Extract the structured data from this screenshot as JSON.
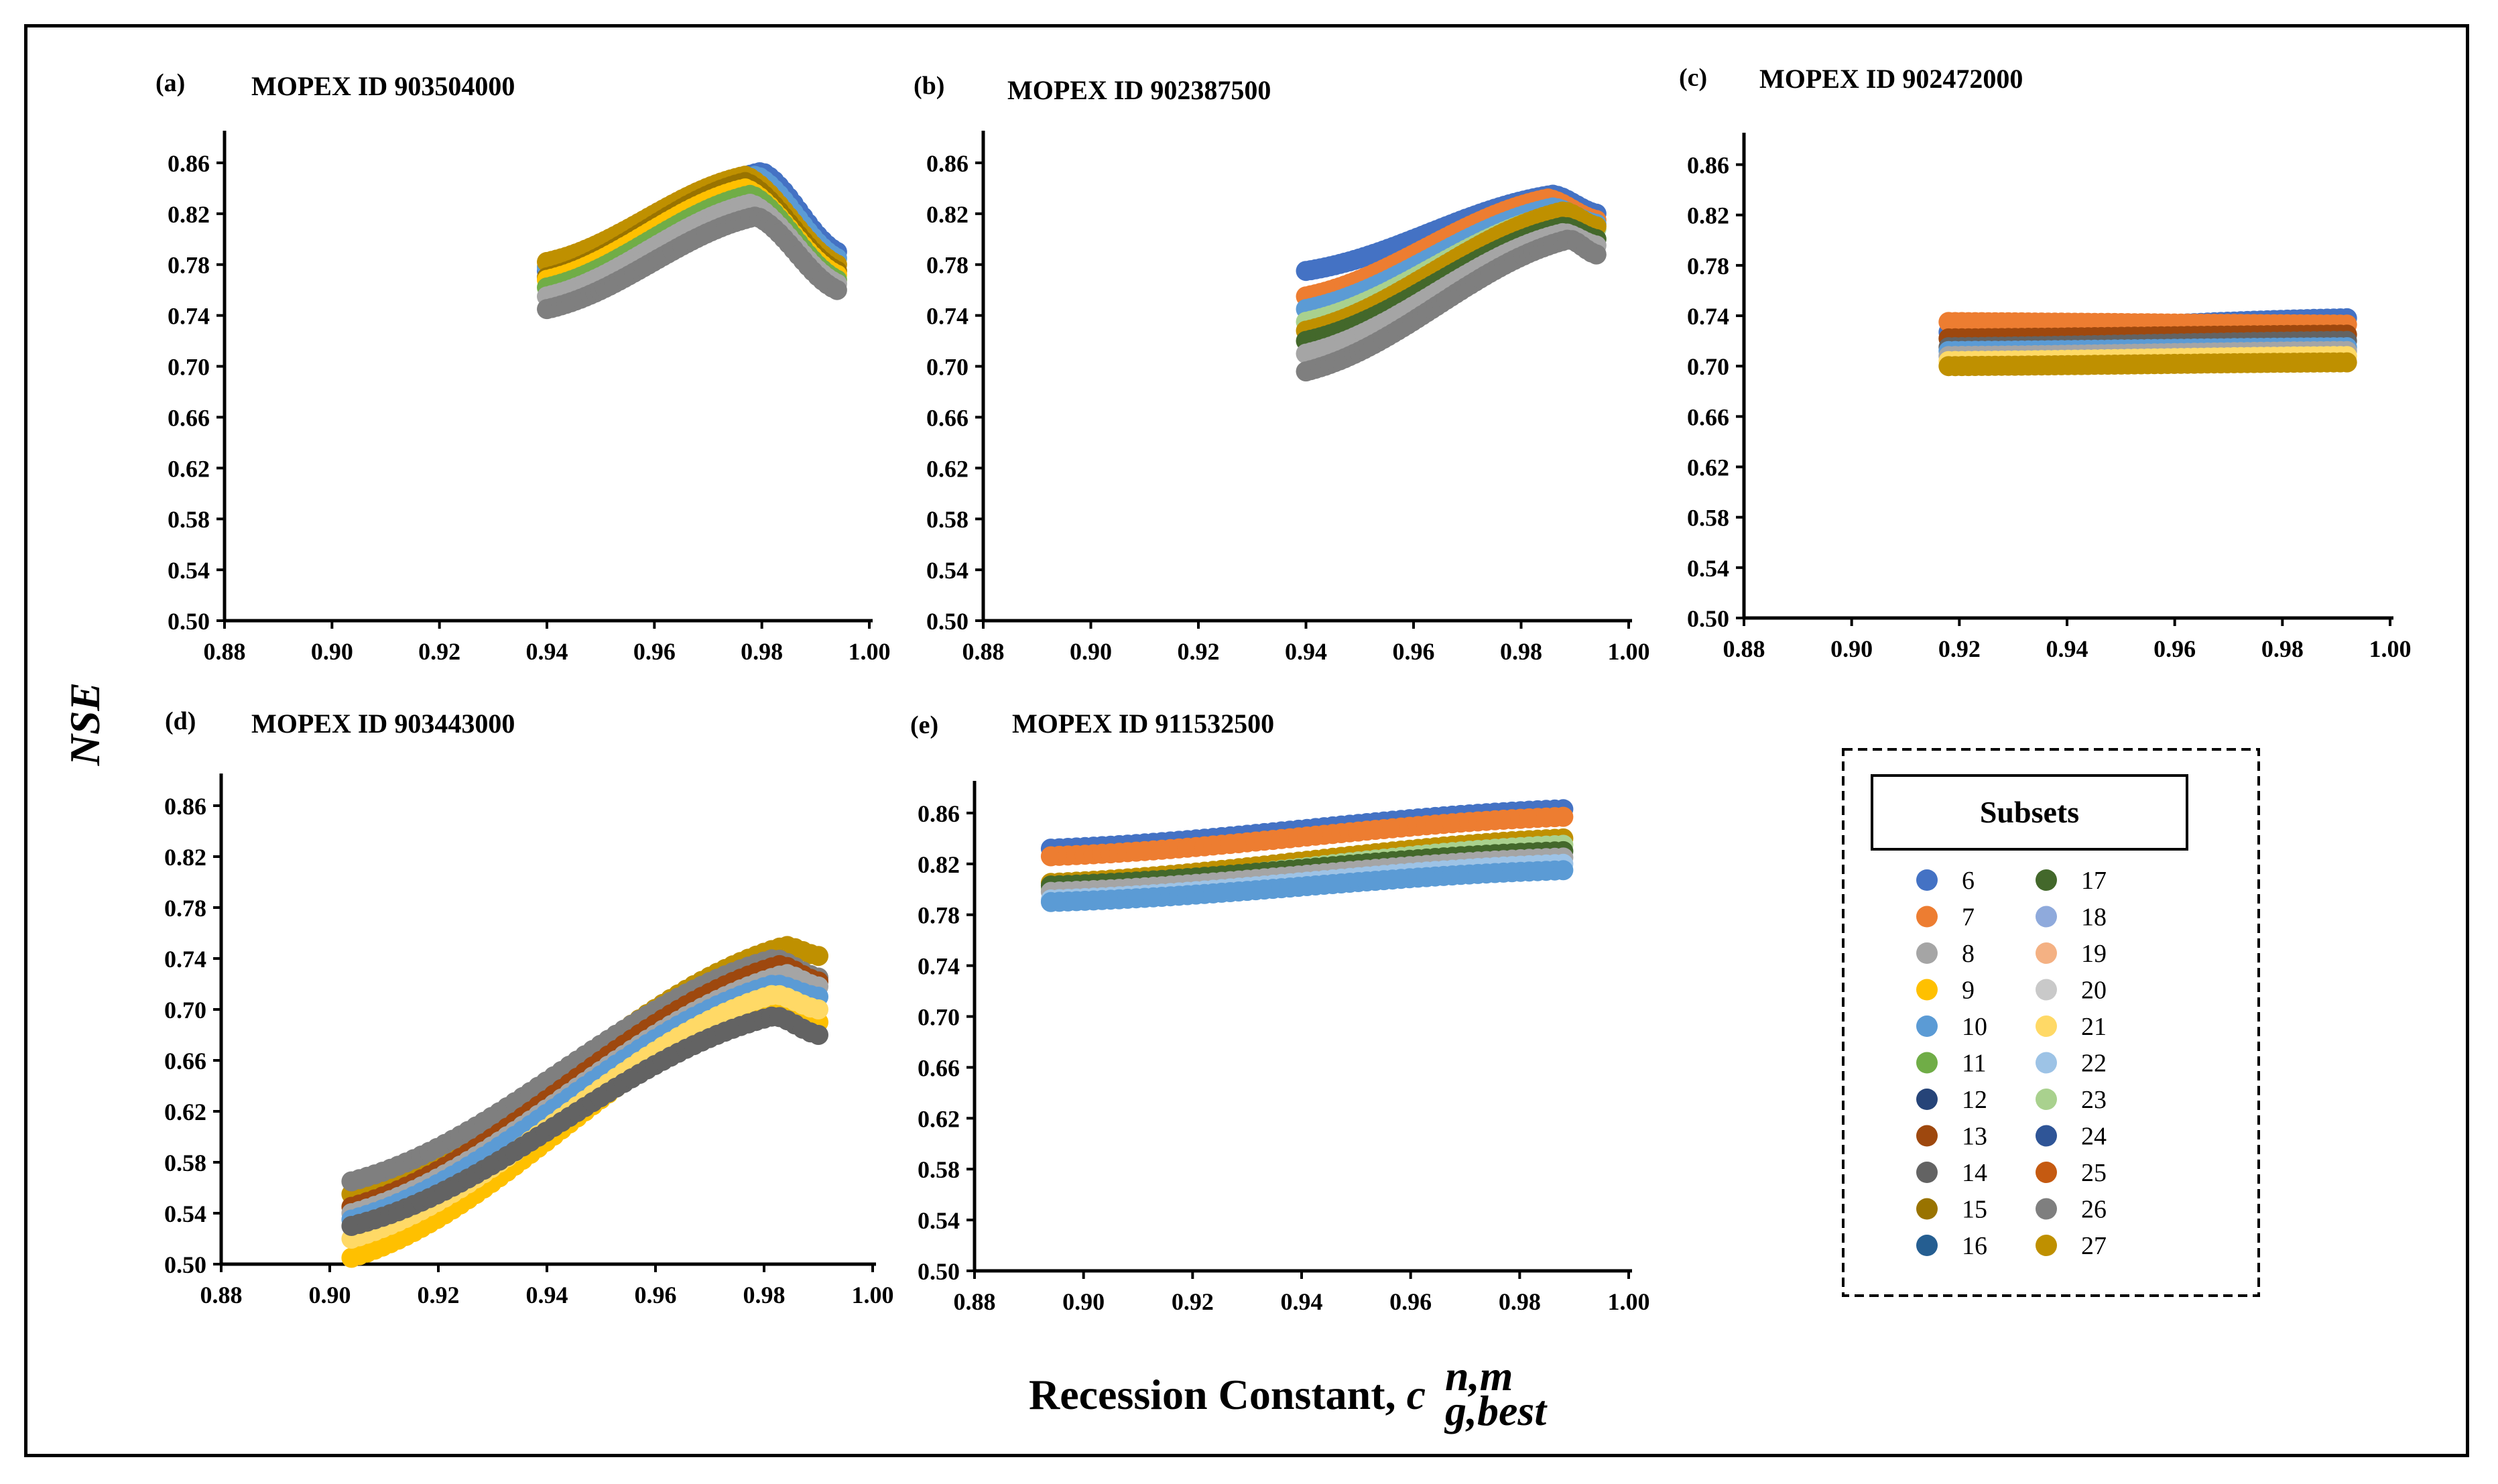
{
  "figure": {
    "y_label": "NSE",
    "x_label": "Recession Constant, ",
    "x_label_symbol": "c",
    "x_label_sup": "n,m",
    "x_label_sub": "g,best"
  },
  "legend": {
    "title": "Subsets",
    "items": [
      {
        "label": "6",
        "color": "#4472C4"
      },
      {
        "label": "7",
        "color": "#ED7D31"
      },
      {
        "label": "8",
        "color": "#A5A5A5"
      },
      {
        "label": "9",
        "color": "#FFC000"
      },
      {
        "label": "10",
        "color": "#5B9BD5"
      },
      {
        "label": "11",
        "color": "#70AD47"
      },
      {
        "label": "12",
        "color": "#264478"
      },
      {
        "label": "13",
        "color": "#9E480E"
      },
      {
        "label": "14",
        "color": "#636363"
      },
      {
        "label": "15",
        "color": "#997300"
      },
      {
        "label": "16",
        "color": "#255E91"
      },
      {
        "label": "17",
        "color": "#43682B"
      },
      {
        "label": "18",
        "color": "#8FAADC"
      },
      {
        "label": "19",
        "color": "#F4B183"
      },
      {
        "label": "20",
        "color": "#C9C9C9"
      },
      {
        "label": "21",
        "color": "#FFD966"
      },
      {
        "label": "22",
        "color": "#9DC3E6"
      },
      {
        "label": "23",
        "color": "#A9D18E"
      },
      {
        "label": "24",
        "color": "#2F5597"
      },
      {
        "label": "25",
        "color": "#C55A11"
      },
      {
        "label": "26",
        "color": "#7F7F7F"
      },
      {
        "label": "27",
        "color": "#BF9000"
      }
    ]
  },
  "chart_data": [
    {
      "type": "scatter",
      "panel": "(a)",
      "title": "MOPEX ID 903504000",
      "xlim": [
        0.88,
        1.0
      ],
      "ylim": [
        0.5,
        0.88
      ],
      "xticks": [
        "0.88",
        "0.90",
        "0.92",
        "0.94",
        "0.96",
        "0.98",
        "1.00"
      ],
      "yticks": [
        "0.50",
        "0.54",
        "0.58",
        "0.62",
        "0.66",
        "0.70",
        "0.74",
        "0.78",
        "0.82",
        "0.86"
      ],
      "x_range": [
        0.94,
        0.994
      ],
      "series": [
        {
          "name": "6",
          "values": [
            [
              0.94,
              0.775
            ],
            [
              0.98,
              0.853
            ],
            [
              0.994,
              0.79
            ]
          ]
        },
        {
          "name": "10",
          "values": [
            [
              0.94,
              0.778
            ],
            [
              0.979,
              0.85
            ],
            [
              0.994,
              0.785
            ]
          ]
        },
        {
          "name": "27",
          "values": [
            [
              0.94,
              0.782
            ],
            [
              0.977,
              0.85
            ],
            [
              0.994,
              0.78
            ]
          ]
        },
        {
          "name": "15",
          "values": [
            [
              0.94,
              0.77
            ],
            [
              0.977,
              0.845
            ],
            [
              0.994,
              0.775
            ]
          ]
        },
        {
          "name": "9",
          "values": [
            [
              0.94,
              0.768
            ],
            [
              0.977,
              0.84
            ],
            [
              0.994,
              0.772
            ]
          ]
        },
        {
          "name": "11",
          "values": [
            [
              0.94,
              0.762
            ],
            [
              0.978,
              0.835
            ],
            [
              0.994,
              0.768
            ]
          ]
        },
        {
          "name": "8",
          "values": [
            [
              0.94,
              0.755
            ],
            [
              0.978,
              0.828
            ],
            [
              0.994,
              0.765
            ]
          ]
        },
        {
          "name": "26",
          "values": [
            [
              0.94,
              0.745
            ],
            [
              0.979,
              0.818
            ],
            [
              0.994,
              0.76
            ]
          ]
        }
      ]
    },
    {
      "type": "scatter",
      "panel": "(b)",
      "title": "MOPEX ID 902387500",
      "xlim": [
        0.88,
        1.0
      ],
      "ylim": [
        0.5,
        0.88
      ],
      "xticks": [
        "0.88",
        "0.90",
        "0.92",
        "0.94",
        "0.96",
        "0.98",
        "1.00"
      ],
      "yticks": [
        "0.50",
        "0.54",
        "0.58",
        "0.62",
        "0.66",
        "0.70",
        "0.74",
        "0.78",
        "0.82",
        "0.86"
      ],
      "x_range": [
        0.94,
        0.994
      ],
      "series": [
        {
          "name": "6",
          "values": [
            [
              0.94,
              0.775
            ],
            [
              0.986,
              0.835
            ],
            [
              0.994,
              0.82
            ]
          ]
        },
        {
          "name": "7",
          "values": [
            [
              0.94,
              0.755
            ],
            [
              0.985,
              0.832
            ],
            [
              0.994,
              0.815
            ]
          ]
        },
        {
          "name": "10",
          "values": [
            [
              0.94,
              0.745
            ],
            [
              0.986,
              0.825
            ],
            [
              0.994,
              0.812
            ]
          ]
        },
        {
          "name": "23",
          "values": [
            [
              0.94,
              0.735
            ],
            [
              0.987,
              0.82
            ],
            [
              0.994,
              0.808
            ]
          ]
        },
        {
          "name": "27",
          "values": [
            [
              0.94,
              0.728
            ],
            [
              0.988,
              0.822
            ],
            [
              0.994,
              0.81
            ]
          ]
        },
        {
          "name": "17",
          "values": [
            [
              0.94,
              0.72
            ],
            [
              0.988,
              0.81
            ],
            [
              0.994,
              0.8
            ]
          ]
        },
        {
          "name": "8",
          "values": [
            [
              0.94,
              0.71
            ],
            [
              0.988,
              0.805
            ],
            [
              0.994,
              0.795
            ]
          ]
        },
        {
          "name": "26",
          "values": [
            [
              0.94,
              0.696
            ],
            [
              0.989,
              0.8
            ],
            [
              0.994,
              0.788
            ]
          ]
        }
      ]
    },
    {
      "type": "scatter",
      "panel": "(c)",
      "title": "MOPEX ID 902472000",
      "xlim": [
        0.88,
        1.0
      ],
      "ylim": [
        0.5,
        0.88
      ],
      "xticks": [
        "0.88",
        "0.90",
        "0.92",
        "0.94",
        "0.96",
        "0.98",
        "1.00"
      ],
      "yticks": [
        "0.50",
        "0.54",
        "0.58",
        "0.62",
        "0.66",
        "0.70",
        "0.74",
        "0.78",
        "0.82",
        "0.86"
      ],
      "x_range": [
        0.918,
        0.992
      ],
      "series": [
        {
          "name": "6",
          "values": [
            [
              0.918,
              0.727
            ],
            [
              0.992,
              0.738
            ]
          ]
        },
        {
          "name": "7",
          "values": [
            [
              0.918,
              0.735
            ],
            [
              0.992,
              0.733
            ]
          ]
        },
        {
          "name": "13",
          "values": [
            [
              0.918,
              0.722
            ],
            [
              0.992,
              0.725
            ]
          ]
        },
        {
          "name": "14",
          "values": [
            [
              0.918,
              0.715
            ],
            [
              0.992,
              0.72
            ]
          ]
        },
        {
          "name": "10",
          "values": [
            [
              0.918,
              0.712
            ],
            [
              0.992,
              0.715
            ]
          ]
        },
        {
          "name": "8",
          "values": [
            [
              0.918,
              0.708
            ],
            [
              0.992,
              0.712
            ]
          ]
        },
        {
          "name": "21",
          "values": [
            [
              0.918,
              0.704
            ],
            [
              0.992,
              0.708
            ]
          ]
        },
        {
          "name": "27",
          "values": [
            [
              0.918,
              0.7
            ],
            [
              0.992,
              0.703
            ]
          ]
        }
      ]
    },
    {
      "type": "scatter",
      "panel": "(d)",
      "title": "MOPEX ID 903443000",
      "xlim": [
        0.88,
        1.0
      ],
      "ylim": [
        0.5,
        0.88
      ],
      "xticks": [
        "0.88",
        "0.90",
        "0.92",
        "0.94",
        "0.96",
        "0.98",
        "1.00"
      ],
      "yticks": [
        "0.50",
        "0.54",
        "0.58",
        "0.62",
        "0.66",
        "0.70",
        "0.74",
        "0.78",
        "0.82",
        "0.86"
      ],
      "x_range": [
        0.904,
        0.99
      ],
      "series": [
        {
          "name": "27",
          "values": [
            [
              0.904,
              0.555
            ],
            [
              0.984,
              0.75
            ],
            [
              0.99,
              0.742
            ]
          ]
        },
        {
          "name": "26",
          "values": [
            [
              0.904,
              0.565
            ],
            [
              0.982,
              0.74
            ],
            [
              0.99,
              0.725
            ]
          ]
        },
        {
          "name": "13",
          "values": [
            [
              0.904,
              0.545
            ],
            [
              0.983,
              0.735
            ],
            [
              0.99,
              0.722
            ]
          ]
        },
        {
          "name": "8",
          "values": [
            [
              0.904,
              0.54
            ],
            [
              0.984,
              0.728
            ],
            [
              0.99,
              0.718
            ]
          ]
        },
        {
          "name": "10",
          "values": [
            [
              0.904,
              0.535
            ],
            [
              0.982,
              0.72
            ],
            [
              0.99,
              0.71
            ]
          ]
        },
        {
          "name": "9",
          "values": [
            [
              0.904,
              0.505
            ],
            [
              0.981,
              0.705
            ],
            [
              0.99,
              0.69
            ]
          ]
        },
        {
          "name": "21",
          "values": [
            [
              0.904,
              0.52
            ],
            [
              0.982,
              0.712
            ],
            [
              0.99,
              0.7
            ]
          ]
        },
        {
          "name": "14",
          "values": [
            [
              0.904,
              0.53
            ],
            [
              0.982,
              0.695
            ],
            [
              0.99,
              0.68
            ]
          ]
        }
      ]
    },
    {
      "type": "scatter",
      "panel": "(e)",
      "title": "MOPEX ID 911532500",
      "xlim": [
        0.88,
        1.0
      ],
      "ylim": [
        0.5,
        0.88
      ],
      "xticks": [
        "0.88",
        "0.90",
        "0.92",
        "0.94",
        "0.96",
        "0.98",
        "1.00"
      ],
      "yticks": [
        "0.50",
        "0.54",
        "0.58",
        "0.62",
        "0.66",
        "0.70",
        "0.74",
        "0.78",
        "0.82",
        "0.86"
      ],
      "x_range": [
        0.894,
        0.988
      ],
      "series": [
        {
          "name": "6",
          "values": [
            [
              0.894,
              0.832
            ],
            [
              0.988,
              0.863
            ]
          ]
        },
        {
          "name": "7",
          "values": [
            [
              0.894,
              0.826
            ],
            [
              0.988,
              0.857
            ]
          ]
        },
        {
          "name": "27",
          "values": [
            [
              0.894,
              0.805
            ],
            [
              0.988,
              0.84
            ]
          ]
        },
        {
          "name": "23",
          "values": [
            [
              0.894,
              0.8
            ],
            [
              0.988,
              0.835
            ]
          ]
        },
        {
          "name": "17",
          "values": [
            [
              0.894,
              0.803
            ],
            [
              0.988,
              0.83
            ]
          ]
        },
        {
          "name": "8",
          "values": [
            [
              0.894,
              0.798
            ],
            [
              0.988,
              0.825
            ]
          ]
        },
        {
          "name": "22",
          "values": [
            [
              0.894,
              0.792
            ],
            [
              0.988,
              0.82
            ]
          ]
        },
        {
          "name": "10",
          "values": [
            [
              0.894,
              0.79
            ],
            [
              0.988,
              0.815
            ]
          ]
        }
      ]
    }
  ]
}
